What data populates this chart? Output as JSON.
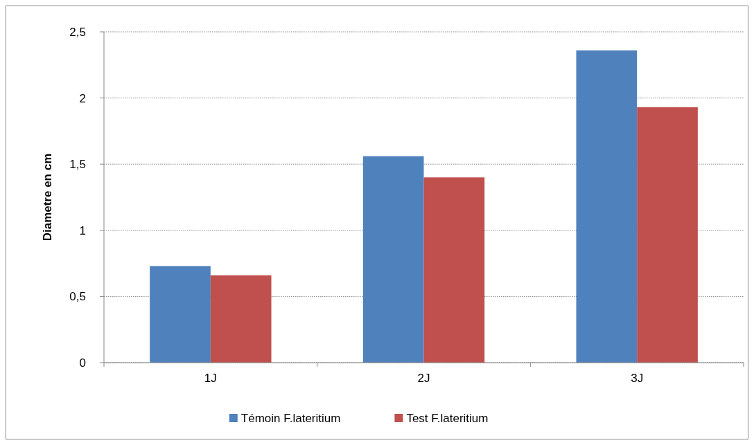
{
  "chart_data": {
    "type": "bar",
    "ylabel": "Diametre en cm",
    "categories": [
      "1J",
      "2J",
      "3J"
    ],
    "series": [
      {
        "name": "Témoin F.lateritium",
        "color": "#4f81bd",
        "values": [
          0.73,
          1.56,
          2.36
        ]
      },
      {
        "name": "Test F.lateritium",
        "color": "#c0504d",
        "values": [
          0.66,
          1.4,
          1.93
        ]
      }
    ],
    "ylim": [
      0,
      2.5
    ],
    "yticks": [
      0,
      {
        "value": 0.5,
        "label": "0,5"
      },
      1,
      {
        "value": 1.5,
        "label": "1,5"
      },
      2,
      {
        "value": 2.5,
        "label": "2,5"
      }
    ],
    "grid": "y",
    "legend": "bottom"
  }
}
